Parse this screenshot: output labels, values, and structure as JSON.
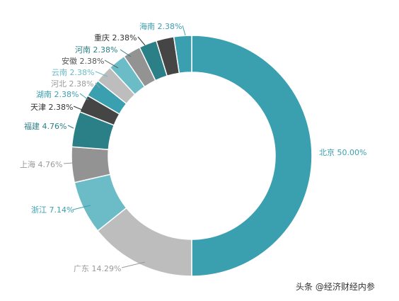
{
  "chart_data": {
    "type": "pie",
    "donut": true,
    "slices": [
      {
        "name": "北京",
        "value": 50.0,
        "label": "北京 50.00%",
        "color": "#3aa0b0"
      },
      {
        "name": "广东",
        "value": 14.29,
        "label": "广东 14.29%",
        "color": "#bdbdbd"
      },
      {
        "name": "浙江",
        "value": 7.14,
        "label": "浙江 7.14%",
        "color": "#6bbcc6"
      },
      {
        "name": "上海",
        "value": 4.76,
        "label": "上海 4.76%",
        "color": "#939393"
      },
      {
        "name": "福建",
        "value": 4.76,
        "label": "福建 4.76%",
        "color": "#2b7f87"
      },
      {
        "name": "天津",
        "value": 2.38,
        "label": "天津 2.38%",
        "color": "#454545"
      },
      {
        "name": "湖南",
        "value": 2.38,
        "label": "湖南 2.38%",
        "color": "#3aa0b0"
      },
      {
        "name": "河北",
        "value": 2.38,
        "label": "河北 2.38%",
        "color": "#bdbdbd"
      },
      {
        "name": "云南",
        "value": 2.38,
        "label": "云南 2.38%",
        "color": "#6bbcc6"
      },
      {
        "name": "安徽",
        "value": 2.38,
        "label": "安徽 2.38%",
        "color": "#939393"
      },
      {
        "name": "河南",
        "value": 2.38,
        "label": "河南 2.38%",
        "color": "#2b7f87"
      },
      {
        "name": "重庆",
        "value": 2.38,
        "label": "重庆 2.38%",
        "color": "#454545"
      },
      {
        "name": "海南",
        "value": 2.38,
        "label": "海南 2.38%",
        "color": "#3aa0b0"
      }
    ],
    "direction": "clockwise",
    "start": "top"
  },
  "watermark": "头条 @经济财经内参"
}
